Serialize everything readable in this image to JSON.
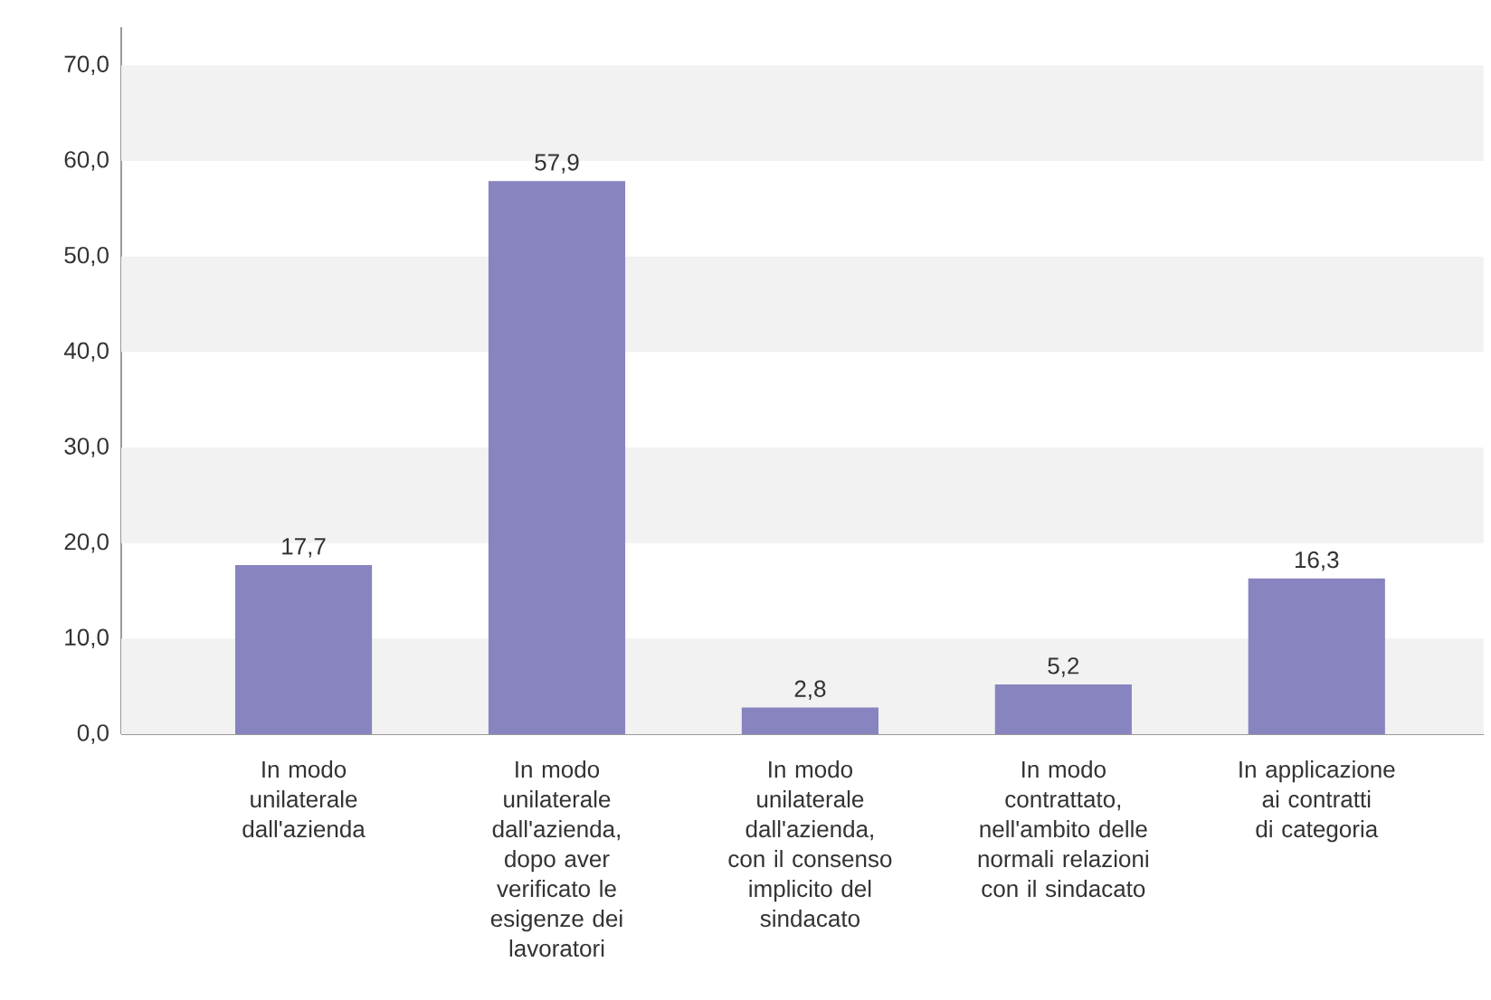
{
  "chart_data": {
    "type": "bar",
    "categories": [
      "In modo unilaterale dall'azienda",
      "In modo unilaterale dall'azienda, dopo aver verificato le esigenze dei lavoratori",
      "In modo unilaterale dall'azienda, con il consenso implicito del sindacato",
      "In modo contrattato, nell'ambito delle normali relazioni con il sindacato",
      "In applicazione ai contratti di categoria"
    ],
    "values": [
      17.7,
      57.9,
      2.8,
      5.2,
      16.3
    ],
    "value_labels": [
      "17,7",
      "57,9",
      "2,8",
      "5,2",
      "16,3"
    ],
    "color": "#8884bf",
    "ylim": [
      0,
      74
    ],
    "yticks": [
      {
        "value": 0,
        "label": "0,0"
      },
      {
        "value": 10,
        "label": "10,0"
      },
      {
        "value": 20,
        "label": "20,0"
      },
      {
        "value": 30,
        "label": "30,0"
      },
      {
        "value": 40,
        "label": "40,0"
      },
      {
        "value": 50,
        "label": "50,0"
      },
      {
        "value": 60,
        "label": "60,0"
      },
      {
        "value": 70,
        "label": "70,0"
      }
    ],
    "bands": [
      {
        "axis": "y",
        "from": 0,
        "to": 10,
        "color": "#f2f2f2"
      },
      {
        "axis": "y",
        "from": 20,
        "to": 30,
        "color": "#f2f2f2"
      },
      {
        "axis": "y",
        "from": 40,
        "to": 50,
        "color": "#f2f2f2"
      },
      {
        "axis": "y",
        "from": 60,
        "to": 70,
        "color": "#f2f2f2"
      }
    ],
    "grid": false
  }
}
